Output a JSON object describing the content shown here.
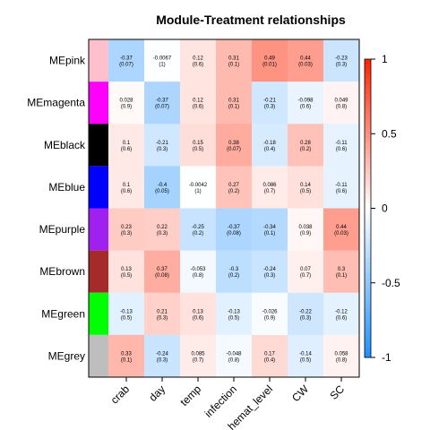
{
  "chart_data": {
    "type": "heatmap",
    "title": "Module-Treatment relationships",
    "rows": [
      {
        "name": "MEpink",
        "color": "#ffc0cb"
      },
      {
        "name": "MEmagenta",
        "color": "#ff00ff"
      },
      {
        "name": "MEblack",
        "color": "#000000"
      },
      {
        "name": "MEblue",
        "color": "#0000ff"
      },
      {
        "name": "MEpurple",
        "color": "#a020f0"
      },
      {
        "name": "MEbrown",
        "color": "#a52a2a"
      },
      {
        "name": "MEgreen",
        "color": "#00ff00"
      },
      {
        "name": "MEgrey",
        "color": "#bebebe"
      }
    ],
    "columns": [
      "crab",
      "day",
      "temp",
      "infection",
      "hemat_level",
      "CW",
      "SC"
    ],
    "values": [
      [
        -0.37,
        -0.0067,
        0.12,
        0.31,
        0.49,
        0.44,
        -0.23
      ],
      [
        0.028,
        -0.37,
        0.12,
        0.31,
        -0.21,
        -0.098,
        0.049
      ],
      [
        0.1,
        -0.21,
        0.15,
        0.38,
        -0.18,
        0.28,
        -0.11
      ],
      [
        0.1,
        -0.4,
        -0.0042,
        0.27,
        0.086,
        0.14,
        -0.11
      ],
      [
        0.23,
        0.22,
        -0.25,
        -0.37,
        -0.34,
        0.038,
        0.44
      ],
      [
        0.13,
        0.37,
        -0.053,
        -0.3,
        -0.24,
        0.07,
        0.3
      ],
      [
        -0.13,
        0.21,
        0.13,
        -0.13,
        -0.026,
        -0.22,
        -0.12
      ],
      [
        0.33,
        -0.24,
        0.085,
        -0.048,
        0.17,
        -0.14,
        0.058
      ]
    ],
    "value_labels": [
      [
        "-0.37",
        "-0.0067",
        "0.12",
        "0.31",
        "0.49",
        "0.44",
        "-0.23"
      ],
      [
        "0.028",
        "-0.37",
        "0.12",
        "0.31",
        "-0.21",
        "-0.098",
        "0.049"
      ],
      [
        "0.1",
        "-0.21",
        "0.15",
        "0.38",
        "-0.18",
        "0.28",
        "-0.11"
      ],
      [
        "0.1",
        "-0.4",
        "-0.0042",
        "0.27",
        "0.086",
        "0.14",
        "-0.11"
      ],
      [
        "0.23",
        "0.22",
        "-0.25",
        "-0.37",
        "-0.34",
        "0.038",
        "0.44"
      ],
      [
        "0.13",
        "0.37",
        "-0.053",
        "-0.3",
        "-0.24",
        "0.07",
        "0.3"
      ],
      [
        "-0.13",
        "0.21",
        "0.13",
        "-0.13",
        "-0.026",
        "-0.22",
        "-0.12"
      ],
      [
        "0.33",
        "-0.24",
        "0.085",
        "-0.048",
        "0.17",
        "-0.14",
        "0.058"
      ]
    ],
    "pvalue_labels": [
      [
        "(0.07)",
        "(1)",
        "(0.6)",
        "(0.1)",
        "(0.01)",
        "(0.03)",
        "(0.3)"
      ],
      [
        "(0.9)",
        "(0.07)",
        "(0.6)",
        "(0.1)",
        "(0.3)",
        "(0.6)",
        "(0.8)"
      ],
      [
        "(0.6)",
        "(0.3)",
        "(0.5)",
        "(0.07)",
        "(0.4)",
        "(0.2)",
        "(0.6)"
      ],
      [
        "(0.6)",
        "(0.05)",
        "(1)",
        "(0.2)",
        "(0.7)",
        "(0.5)",
        "(0.6)"
      ],
      [
        "(0.3)",
        "(0.3)",
        "(0.2)",
        "(0.08)",
        "(0.1)",
        "(0.9)",
        "(0.03)"
      ],
      [
        "(0.5)",
        "(0.08)",
        "(0.8)",
        "(0.2)",
        "(0.3)",
        "(0.7)",
        "(0.1)"
      ],
      [
        "(0.5)",
        "(0.3)",
        "(0.6)",
        "(0.5)",
        "(0.9)",
        "(0.3)",
        "(0.6)"
      ],
      [
        "(0.1)",
        "(0.3)",
        "(0.7)",
        "(0.8)",
        "(0.4)",
        "(0.5)",
        "(0.8)"
      ]
    ],
    "color_scale": {
      "min": -1,
      "max": 1,
      "low_color": "#1e90ff",
      "mid_color": "#ffffff",
      "high_color": "#ff2200",
      "ticks": [
        "1",
        "0.5",
        "0",
        "-0.5",
        "-1"
      ]
    }
  }
}
